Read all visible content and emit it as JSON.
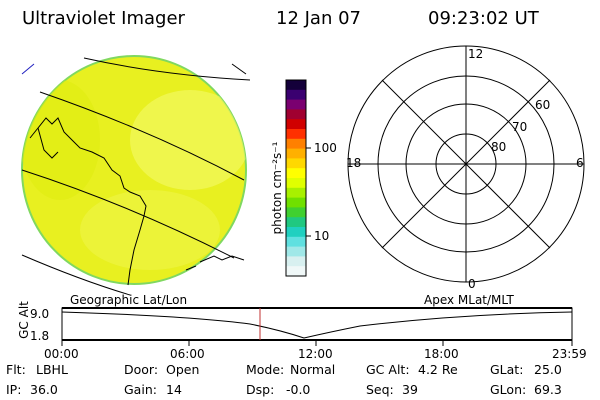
{
  "header": {
    "instrument": "Ultraviolet Imager",
    "date": "12 Jan 07",
    "time": "09:23:02 UT"
  },
  "colorbar": {
    "unit": "photon cm⁻²s⁻¹",
    "ticks": [
      "100",
      "10"
    ],
    "colors_top_to_bottom": [
      "#14003a",
      "#3a0070",
      "#7a0070",
      "#a00030",
      "#d00000",
      "#ff3000",
      "#ff8000",
      "#ffb000",
      "#ffd800",
      "#ffff00",
      "#e0ff00",
      "#a8f000",
      "#70e000",
      "#40d030",
      "#20c880",
      "#20d0c0",
      "#60e0e0",
      "#a0e8e8",
      "#d8f0f0",
      "#f0f8f8"
    ]
  },
  "polar_plot": {
    "label_top": "12",
    "label_bottom": "0",
    "label_left": "18",
    "label_right": "6",
    "lat_labels": [
      "60",
      "70",
      "80"
    ]
  },
  "timeline": {
    "left_title": "Geographic Lat/Lon",
    "right_title": "Apex MLat/MLT",
    "axis_label": "GC Alt",
    "y_top": "9.0",
    "y_bottom": "1.8",
    "x_ticks": [
      "00:00",
      "06:00",
      "12:00",
      "18:00",
      "23:59"
    ],
    "marker_time": "09:23:02"
  },
  "status": {
    "flt_label": "Flt:",
    "flt_value": "LBHL",
    "ip_label": "IP:",
    "ip_value": "36.0",
    "door_label": "Door:",
    "door_value": "Open",
    "gain_label": "Gain:",
    "gain_value": "14",
    "mode_label": "Mode:",
    "mode_value": "Normal",
    "dsp_label": "Dsp:",
    "dsp_value": "-0.0",
    "gcalt_label": "GC Alt:",
    "gcalt_value": "4.2 Re",
    "seq_label": "Seq:",
    "seq_value": "39",
    "glat_label": "GLat:",
    "glat_value": "25.0",
    "glon_label": "GLon:",
    "glon_value": "69.3"
  },
  "colors": {
    "image_fill": "#e8f020",
    "image_light": "#f2f860",
    "image_edge": "#80d860",
    "marker_line": "#c03030"
  }
}
